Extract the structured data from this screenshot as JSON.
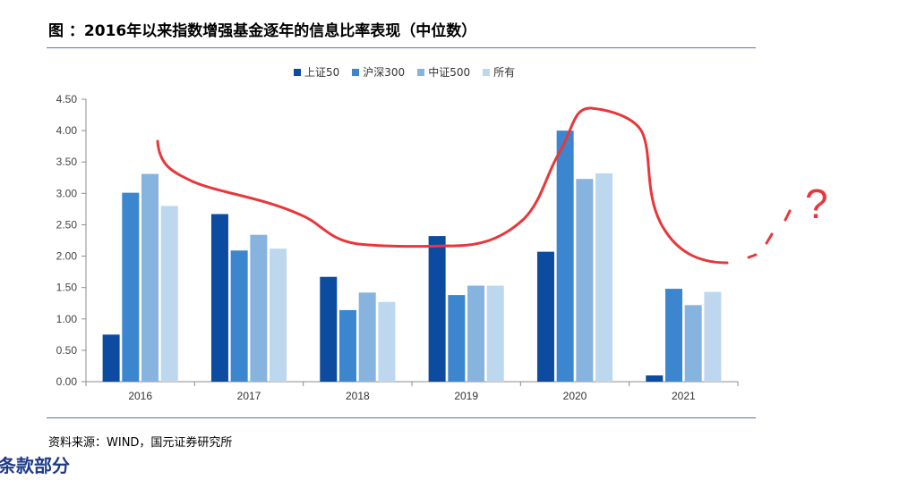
{
  "header": {
    "title": "图 ：2016年以来指数增强基金逐年的信息比率表现（中位数）"
  },
  "chart_data": {
    "type": "bar",
    "categories": [
      "2016",
      "2017",
      "2018",
      "2019",
      "2020",
      "2021"
    ],
    "series": [
      {
        "name": "上证50",
        "color": "#0d4ba0",
        "values": [
          0.75,
          2.67,
          1.67,
          2.32,
          2.07,
          0.1
        ]
      },
      {
        "name": "沪深300",
        "color": "#3c86d0",
        "values": [
          3.01,
          2.09,
          1.14,
          1.38,
          4.0,
          1.48
        ]
      },
      {
        "name": "中证500",
        "color": "#86b4df",
        "values": [
          3.31,
          2.34,
          1.42,
          1.53,
          3.23,
          1.22
        ]
      },
      {
        "name": "所有",
        "color": "#bdd7ee",
        "values": [
          2.8,
          2.12,
          1.27,
          1.53,
          3.32,
          1.43
        ]
      }
    ],
    "ylim": [
      0,
      4.5
    ],
    "yticks": [
      "0.00",
      "0.50",
      "1.00",
      "1.50",
      "2.00",
      "2.50",
      "3.00",
      "3.50",
      "4.00",
      "4.50"
    ],
    "xlabel": "",
    "ylabel": "",
    "grid": false,
    "legend": "top-center",
    "annotation": {
      "type": "handwritten",
      "color": "#e8373a",
      "text": "?"
    }
  },
  "footer": {
    "source": "资料来源：WIND，国元证券研究所",
    "section_heading": "条款部分"
  }
}
